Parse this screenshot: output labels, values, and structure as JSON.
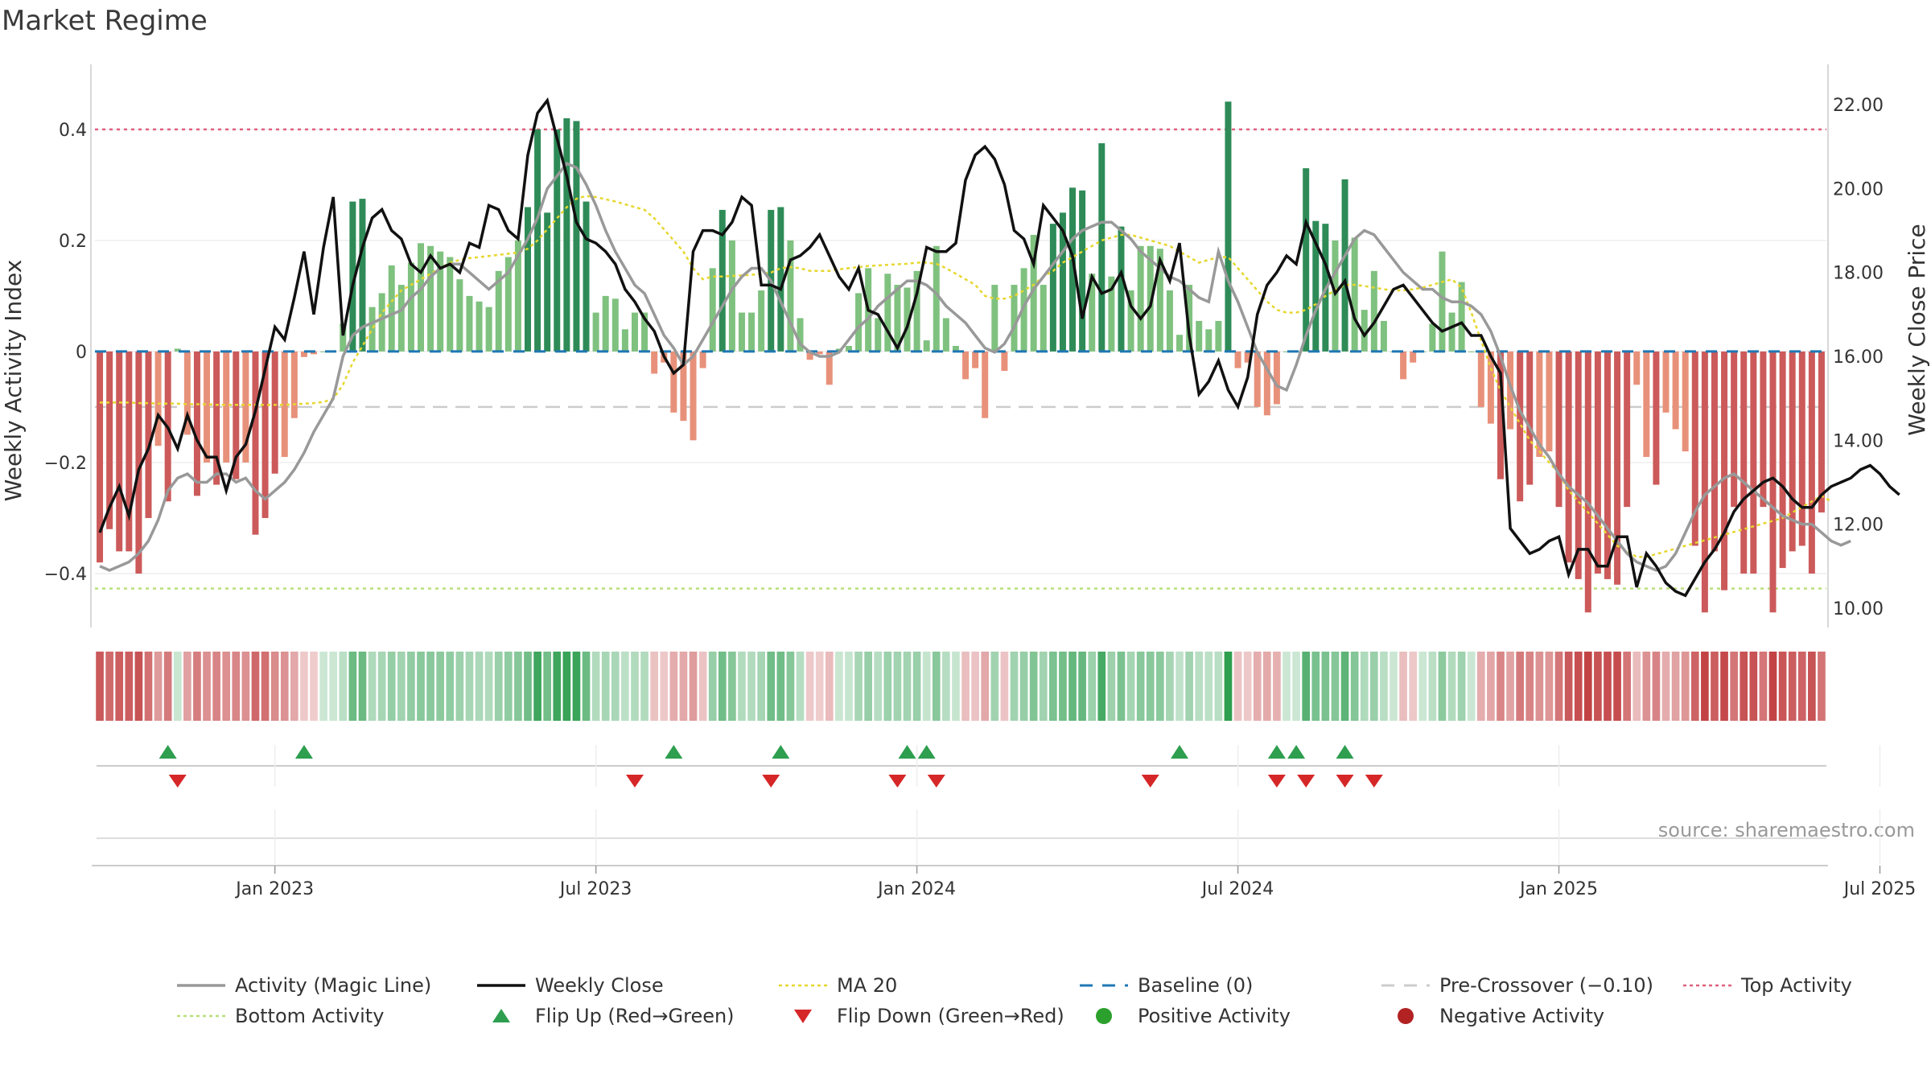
{
  "page": {
    "title": "Market Regime",
    "source": "source: sharemaestro.com"
  },
  "chart_data": {
    "type": "bar",
    "title": "Market Regime",
    "ylabel_left": "Weekly Activity Index",
    "ylabel_right": "Weekly Close Price",
    "ylim_left": [
      -0.5,
      0.52
    ],
    "ylim_right": [
      9.5,
      23.0
    ],
    "left_ticks": [
      {
        "v": 0.4,
        "label": "0.4"
      },
      {
        "v": 0.2,
        "label": "0.2"
      },
      {
        "v": 0.0,
        "label": "0"
      },
      {
        "v": -0.2,
        "label": "−0.2"
      },
      {
        "v": -0.4,
        "label": "−0.4"
      }
    ],
    "right_ticks": [
      {
        "v": 22,
        "label": "22.00"
      },
      {
        "v": 20,
        "label": "20.00"
      },
      {
        "v": 18,
        "label": "18.00"
      },
      {
        "v": 16,
        "label": "16.00"
      },
      {
        "v": 14,
        "label": "14.00"
      },
      {
        "v": 12,
        "label": "12.00"
      },
      {
        "v": 10,
        "label": "10.00"
      }
    ],
    "x_ticks": [
      {
        "i": 18,
        "label": "Jan 2023"
      },
      {
        "i": 51,
        "label": "Jul 2023"
      },
      {
        "i": 84,
        "label": "Jan 2024"
      },
      {
        "i": 117,
        "label": "Jul 2024"
      },
      {
        "i": 150,
        "label": "Jan 2025"
      },
      {
        "i": 183,
        "label": "Jul 2025"
      }
    ],
    "reference_lines": {
      "top_activity": 0.4,
      "bottom_activity": -0.427,
      "pre_crossover": -0.1,
      "baseline": 0
    },
    "activity": [
      -0.38,
      -0.32,
      -0.36,
      -0.36,
      -0.4,
      -0.3,
      -0.17,
      -0.27,
      0.005,
      -0.15,
      -0.26,
      -0.2,
      -0.24,
      -0.2,
      -0.23,
      -0.2,
      -0.33,
      -0.3,
      -0.22,
      -0.19,
      -0.12,
      -0.01,
      -0.005,
      0.0,
      0.0,
      0.05,
      0.27,
      0.275,
      0.08,
      0.105,
      0.155,
      0.12,
      0.16,
      0.195,
      0.19,
      0.18,
      0.17,
      0.13,
      0.1,
      0.09,
      0.08,
      0.145,
      0.17,
      0.2,
      0.26,
      0.4,
      0.25,
      0.4,
      0.42,
      0.415,
      0.27,
      0.07,
      0.1,
      0.095,
      0.04,
      0.07,
      0.07,
      -0.04,
      -0.02,
      -0.11,
      -0.125,
      -0.16,
      -0.03,
      0.15,
      0.255,
      0.2,
      0.07,
      0.07,
      0.11,
      0.255,
      0.26,
      0.2,
      0.06,
      -0.015,
      -0.005,
      -0.06,
      0.005,
      0.01,
      0.105,
      0.15,
      0.06,
      0.14,
      0.12,
      0.115,
      0.145,
      0.02,
      0.19,
      0.06,
      0.01,
      -0.05,
      -0.03,
      -0.12,
      0.12,
      -0.035,
      0.12,
      0.15,
      0.21,
      0.12,
      0.23,
      0.25,
      0.295,
      0.29,
      0.14,
      0.375,
      0.135,
      0.225,
      0.11,
      0.19,
      0.19,
      0.185,
      0.11,
      0.03,
      0.12,
      0.055,
      0.04,
      0.055,
      0.45,
      -0.03,
      -0.02,
      -0.1,
      -0.115,
      -0.095,
      0.0,
      0.0,
      0.33,
      0.235,
      0.23,
      0.2,
      0.31,
      0.205,
      0.075,
      0.145,
      0.055,
      0.0,
      -0.05,
      -0.02,
      0.0,
      0.05,
      0.18,
      0.07,
      0.125,
      0.0,
      -0.1,
      -0.13,
      -0.23,
      -0.14,
      -0.27,
      -0.24,
      -0.19,
      -0.18,
      -0.28,
      -0.38,
      -0.41,
      -0.47,
      -0.4,
      -0.41,
      -0.42,
      -0.28,
      -0.06,
      -0.19,
      -0.24,
      -0.11,
      -0.14,
      -0.18,
      -0.35,
      -0.47,
      -0.36,
      -0.43,
      -0.28,
      -0.4,
      -0.4,
      -0.28,
      -0.47,
      -0.39,
      -0.36,
      -0.35,
      -0.4,
      -0.29
    ],
    "weekly_close": [
      11.8,
      12.4,
      12.9,
      12.2,
      13.3,
      13.8,
      14.6,
      14.3,
      13.8,
      14.6,
      14.0,
      13.6,
      13.6,
      12.8,
      13.6,
      13.9,
      14.7,
      15.7,
      16.7,
      16.4,
      17.4,
      18.5,
      17.0,
      18.6,
      19.8,
      16.5,
      17.7,
      18.6,
      19.3,
      19.5,
      19.0,
      18.8,
      18.2,
      18.0,
      18.4,
      18.1,
      18.2,
      18.0,
      18.7,
      18.6,
      19.6,
      19.5,
      19.0,
      18.8,
      20.8,
      21.8,
      22.1,
      21.2,
      20.3,
      19.2,
      18.8,
      18.7,
      18.5,
      18.2,
      17.6,
      17.3,
      16.9,
      16.6,
      16.0,
      15.6,
      15.8,
      18.5,
      19.0,
      19.0,
      18.9,
      19.2,
      19.8,
      19.6,
      17.7,
      17.7,
      17.6,
      18.3,
      18.4,
      18.6,
      18.9,
      18.4,
      17.9,
      17.6,
      18.1,
      17.1,
      17.0,
      16.6,
      16.2,
      16.7,
      17.5,
      18.6,
      18.5,
      18.5,
      18.7,
      20.2,
      20.8,
      21.0,
      20.7,
      20.1,
      19.0,
      18.8,
      18.2,
      19.6,
      19.3,
      19.0,
      18.4,
      16.9,
      17.9,
      17.5,
      17.6,
      18.0,
      17.2,
      16.9,
      17.2,
      18.3,
      17.8,
      18.7,
      16.5,
      15.1,
      15.4,
      15.9,
      15.2,
      14.8,
      15.5,
      17.0,
      17.7,
      18.0,
      18.4,
      18.2,
      19.2,
      18.7,
      18.2,
      17.5,
      17.8,
      16.9,
      16.5,
      16.8,
      17.2,
      17.6,
      17.7,
      17.4,
      17.1,
      16.8,
      16.6,
      16.7,
      16.8,
      16.5,
      16.5,
      16.0,
      15.6,
      11.9,
      11.6,
      11.3,
      11.4,
      11.6,
      11.7,
      10.8,
      11.4,
      11.4,
      11.0,
      11.0,
      11.7,
      11.7,
      10.5,
      11.3,
      11.0,
      10.6,
      10.4,
      10.3,
      10.7,
      11.1,
      11.4,
      11.8,
      12.3,
      12.6,
      12.8,
      13.0,
      13.1,
      12.9,
      12.6,
      12.4,
      12.4,
      12.7,
      12.9,
      13.0,
      13.1,
      13.3,
      13.4,
      13.2,
      12.9,
      12.7
    ],
    "magic_line": [
      11.0,
      10.9,
      11.0,
      11.1,
      11.3,
      11.6,
      12.1,
      12.8,
      13.1,
      13.2,
      13.0,
      13.0,
      13.2,
      13.2,
      13.0,
      13.1,
      12.8,
      12.6,
      12.8,
      13.0,
      13.3,
      13.7,
      14.2,
      14.6,
      15.0,
      16.0,
      16.5,
      16.7,
      16.8,
      16.9,
      17.0,
      17.1,
      17.4,
      17.6,
      17.9,
      18.1,
      18.2,
      18.2,
      18.0,
      17.8,
      17.6,
      17.8,
      18.0,
      18.4,
      18.8,
      19.3,
      20.0,
      20.3,
      20.6,
      20.5,
      20.1,
      19.6,
      19.0,
      18.5,
      18.1,
      17.7,
      17.5,
      17.0,
      16.5,
      16.2,
      15.8,
      16.0,
      16.4,
      16.8,
      17.2,
      17.6,
      17.9,
      18.1,
      18.1,
      17.8,
      17.3,
      16.8,
      16.3,
      16.1,
      16.0,
      16.0,
      16.1,
      16.4,
      16.7,
      16.9,
      17.2,
      17.4,
      17.6,
      17.8,
      17.8,
      17.7,
      17.5,
      17.2,
      17.0,
      16.8,
      16.5,
      16.2,
      16.1,
      16.3,
      16.7,
      17.2,
      17.6,
      17.9,
      18.2,
      18.5,
      18.8,
      19.0,
      19.1,
      19.2,
      19.2,
      19.0,
      18.8,
      18.5,
      18.3,
      18.1,
      17.9,
      17.8,
      17.6,
      17.4,
      17.3,
      18.5,
      17.8,
      17.3,
      16.7,
      16.1,
      15.7,
      15.3,
      15.2,
      15.8,
      16.5,
      17.1,
      17.6,
      18.0,
      18.4,
      18.8,
      19.0,
      18.9,
      18.6,
      18.3,
      18.0,
      17.8,
      17.6,
      17.6,
      17.4,
      17.3,
      17.3,
      17.2,
      17.0,
      16.6,
      16.0,
      15.3,
      14.7,
      14.3,
      13.9,
      13.6,
      13.2,
      12.9,
      12.7,
      12.5,
      12.2,
      11.9,
      11.6,
      11.3,
      11.1,
      11.0,
      10.9,
      11.0,
      11.3,
      11.8,
      12.3,
      12.7,
      12.9,
      13.1,
      13.2,
      13.0,
      12.8,
      12.6,
      12.4,
      12.2,
      12.1,
      12.0,
      12.0,
      11.8,
      11.6,
      11.5,
      11.6
    ],
    "ma20_left": [
      -0.092,
      -0.092,
      -0.092,
      -0.092,
      -0.093,
      -0.093,
      -0.094,
      -0.094,
      -0.094,
      -0.095,
      -0.095,
      -0.095,
      -0.096,
      -0.096,
      -0.096,
      -0.096,
      -0.096,
      -0.096,
      -0.096,
      -0.096,
      -0.095,
      -0.094,
      -0.093,
      -0.091,
      -0.085,
      -0.06,
      -0.02,
      0.01,
      0.04,
      0.07,
      0.09,
      0.11,
      0.12,
      0.13,
      0.14,
      0.15,
      0.16,
      0.165,
      0.168,
      0.17,
      0.172,
      0.174,
      0.176,
      0.178,
      0.185,
      0.2,
      0.22,
      0.24,
      0.26,
      0.275,
      0.28,
      0.278,
      0.274,
      0.27,
      0.265,
      0.26,
      0.255,
      0.24,
      0.22,
      0.2,
      0.18,
      0.15,
      0.13,
      0.135,
      0.135,
      0.136,
      0.137,
      0.138,
      0.14,
      0.142,
      0.15,
      0.152,
      0.15,
      0.145,
      0.145,
      0.145,
      0.148,
      0.15,
      0.152,
      0.154,
      0.155,
      0.156,
      0.157,
      0.158,
      0.16,
      0.16,
      0.158,
      0.15,
      0.14,
      0.13,
      0.12,
      0.1,
      0.095,
      0.095,
      0.1,
      0.11,
      0.12,
      0.135,
      0.145,
      0.16,
      0.17,
      0.18,
      0.19,
      0.2,
      0.205,
      0.21,
      0.21,
      0.205,
      0.2,
      0.195,
      0.19,
      0.18,
      0.17,
      0.16,
      0.165,
      0.17,
      0.17,
      0.15,
      0.13,
      0.11,
      0.09,
      0.075,
      0.07,
      0.07,
      0.075,
      0.085,
      0.1,
      0.11,
      0.12,
      0.12,
      0.118,
      0.115,
      0.112,
      0.11,
      0.11,
      0.112,
      0.115,
      0.12,
      0.125,
      0.13,
      0.115,
      0.07,
      0.02,
      -0.03,
      -0.07,
      -0.1,
      -0.13,
      -0.16,
      -0.18,
      -0.2,
      -0.22,
      -0.25,
      -0.27,
      -0.29,
      -0.31,
      -0.33,
      -0.35,
      -0.36,
      -0.37,
      -0.37,
      -0.365,
      -0.36,
      -0.355,
      -0.35,
      -0.345,
      -0.34,
      -0.335,
      -0.33,
      -0.325,
      -0.32,
      -0.315,
      -0.31,
      -0.305,
      -0.3,
      -0.29,
      -0.28,
      -0.27,
      -0.26,
      -0.27
    ],
    "flip_up": [
      7,
      21,
      59,
      70,
      83,
      85,
      111,
      121,
      123,
      128
    ],
    "flip_down": [
      8,
      55,
      69,
      82,
      86,
      108,
      121,
      124,
      128,
      131
    ],
    "colors": {
      "top_activity": "#e0607e",
      "bottom_activity": "#b8e07a",
      "pre_crossover": "#cccccc",
      "baseline": "#1f77b4",
      "ma20": "#e6d72e",
      "weekly_close": "#111111",
      "magic_line": "#999999",
      "flip_up": "#2e9e4f",
      "flip_down": "#d62728",
      "positive": "#2ca02c",
      "negative": "#b22222"
    },
    "legend": [
      {
        "label": "Activity (Magic Line)",
        "kind": "line",
        "color": "#999999"
      },
      {
        "label": "Weekly Close",
        "kind": "line",
        "color": "#111111"
      },
      {
        "label": "MA 20",
        "kind": "dotted",
        "color": "#e6d72e"
      },
      {
        "label": "Baseline (0)",
        "kind": "dashed",
        "color": "#1f77b4"
      },
      {
        "label": "Pre-Crossover (−0.10)",
        "kind": "dashed",
        "color": "#cccccc"
      },
      {
        "label": "Top Activity",
        "kind": "dotted",
        "color": "#e0607e"
      },
      {
        "label": "Bottom Activity",
        "kind": "dotted",
        "color": "#b8e07a"
      },
      {
        "label": "Flip Up (Red→Green)",
        "kind": "tri-up",
        "color": "#2e9e4f"
      },
      {
        "label": "Flip Down (Green→Red)",
        "kind": "tri-down",
        "color": "#d62728"
      },
      {
        "label": "Positive Activity",
        "kind": "dot",
        "color": "#2ca02c"
      },
      {
        "label": "Negative Activity",
        "kind": "dot",
        "color": "#b22222"
      }
    ]
  }
}
